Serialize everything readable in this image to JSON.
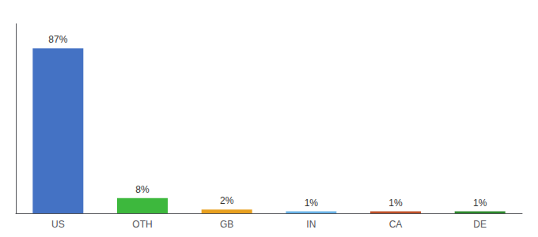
{
  "chart_data": {
    "type": "bar",
    "categories": [
      "US",
      "OTH",
      "GB",
      "IN",
      "CA",
      "DE"
    ],
    "values": [
      87,
      8,
      2,
      1,
      1,
      1
    ],
    "value_labels": [
      "87%",
      "8%",
      "2%",
      "1%",
      "1%",
      "1%"
    ],
    "colors": [
      "#4472c4",
      "#3db83d",
      "#e8a020",
      "#6ab4e8",
      "#c0522a",
      "#2d8a2d"
    ],
    "ylim": [
      0,
      100
    ],
    "grid": false,
    "data_labels": true,
    "tick_labels": "x"
  }
}
